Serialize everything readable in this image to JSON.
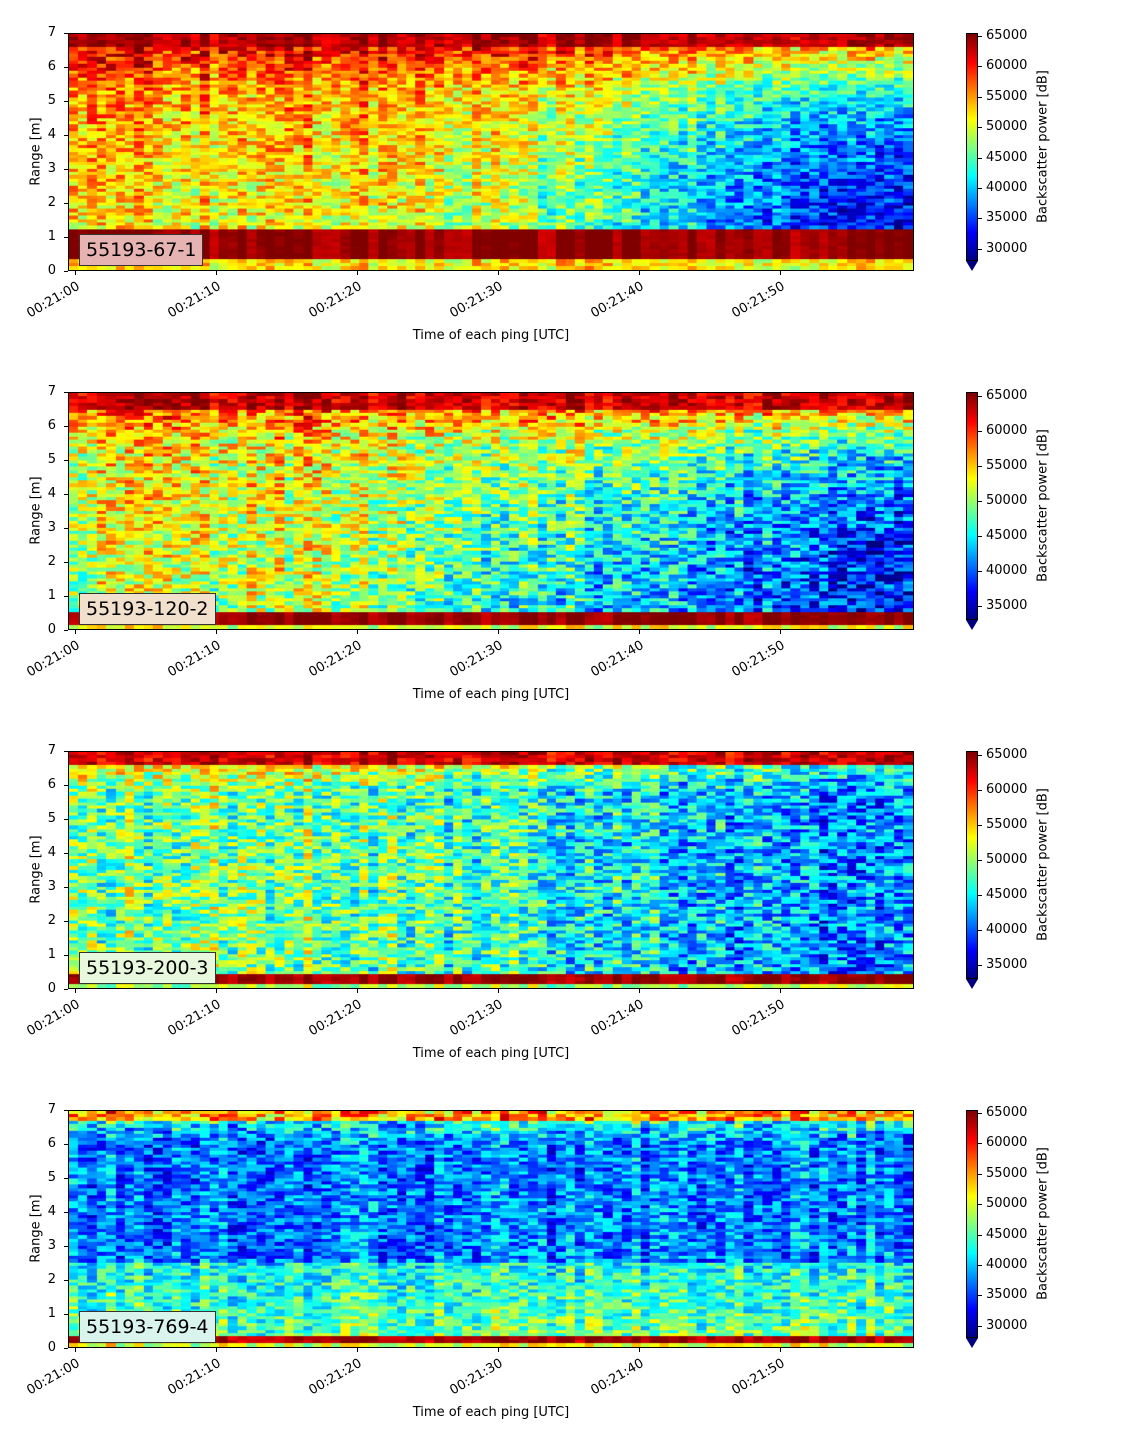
{
  "chart_data": [
    {
      "type": "heatmap",
      "label": "55193-67-1",
      "label_color": "#e6b2b2",
      "xlabel": "Time of each ping [UTC]",
      "ylabel": "Range [m]",
      "colorbar_label": "Backscatter power [dB]",
      "x_ticks": [
        "00:21:00",
        "00:21:10",
        "00:21:20",
        "00:21:30",
        "00:21:40",
        "00:21:50"
      ],
      "y_ticks": [
        "0",
        "1",
        "2",
        "3",
        "4",
        "5",
        "6",
        "7"
      ],
      "ylim": [
        0,
        7
      ],
      "colorbar_ticks": [
        "30000",
        "35000",
        "40000",
        "45000",
        "50000",
        "55000",
        "60000",
        "65000"
      ],
      "clim": [
        28000,
        65500
      ],
      "colormap": "jet",
      "pattern": "strong near-surface band 0.2-1.2 m; warm upper layer fading to cold deep blue in the later half"
    },
    {
      "type": "heatmap",
      "label": "55193-120-2",
      "label_color": "#f0e0cc",
      "xlabel": "Time of each ping [UTC]",
      "ylabel": "Range [m]",
      "colorbar_label": "Backscatter power [dB]",
      "x_ticks": [
        "00:21:00",
        "00:21:10",
        "00:21:20",
        "00:21:30",
        "00:21:40",
        "00:21:50"
      ],
      "y_ticks": [
        "0",
        "1",
        "2",
        "3",
        "4",
        "5",
        "6",
        "7"
      ],
      "ylim": [
        0,
        7
      ],
      "colorbar_ticks": [
        "35000",
        "40000",
        "45000",
        "50000",
        "55000",
        "60000",
        "65000"
      ],
      "clim": [
        33000,
        65500
      ],
      "colormap": "jet",
      "pattern": "near-surface band 0.1-0.5 m; mixed warm/cyan early, blue later"
    },
    {
      "type": "heatmap",
      "label": "55193-200-3",
      "label_color": "#e8f8dc",
      "xlabel": "Time of each ping [UTC]",
      "ylabel": "Range [m]",
      "colorbar_label": "Backscatter power [dB]",
      "x_ticks": [
        "00:21:00",
        "00:21:10",
        "00:21:20",
        "00:21:30",
        "00:21:40",
        "00:21:50"
      ],
      "y_ticks": [
        "0",
        "1",
        "2",
        "3",
        "4",
        "5",
        "6",
        "7"
      ],
      "ylim": [
        0,
        7
      ],
      "colorbar_ticks": [
        "35000",
        "40000",
        "45000",
        "50000",
        "55000",
        "60000",
        "65000"
      ],
      "clim": [
        33000,
        65500
      ],
      "colormap": "jet",
      "pattern": "thin near-surface band; cyan/green early, blue later"
    },
    {
      "type": "heatmap",
      "label": "55193-769-4",
      "label_color": "#d8f4ec",
      "xlabel": "Time of each ping [UTC]",
      "ylabel": "Range [m]",
      "colorbar_label": "Backscatter power [dB]",
      "x_ticks": [
        "00:21:00",
        "00:21:10",
        "00:21:20",
        "00:21:30",
        "00:21:40",
        "00:21:50"
      ],
      "y_ticks": [
        "0",
        "1",
        "2",
        "3",
        "4",
        "5",
        "6",
        "7"
      ],
      "ylim": [
        0,
        7
      ],
      "colorbar_ticks": [
        "30000",
        "35000",
        "40000",
        "45000",
        "50000",
        "55000",
        "60000",
        "65000"
      ],
      "clim": [
        28000,
        65500
      ],
      "colormap": "jet",
      "pattern": "mostly blue throughout; cyan lower layer; thin red surface band"
    }
  ]
}
